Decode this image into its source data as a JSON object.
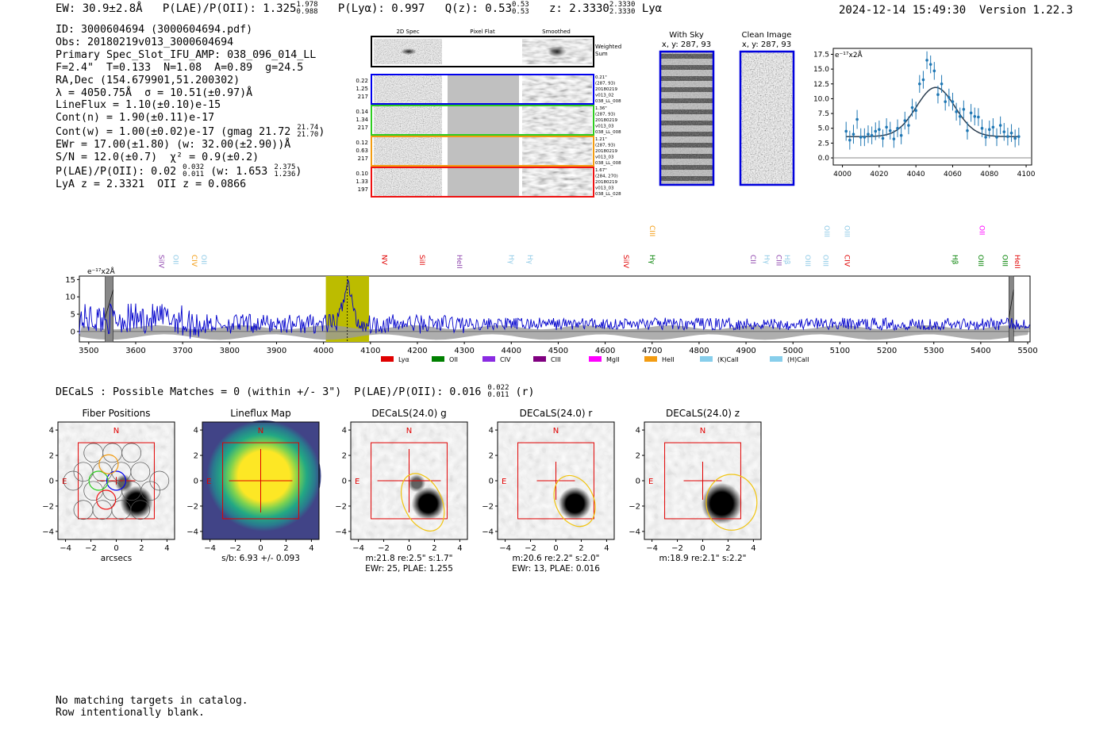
{
  "header": {
    "ew": "EW: 30.9±2.8Å",
    "plae_label": "P(LAE)/P(OII): 1.325",
    "plae_hi": "1.978",
    "plae_lo": "0.988",
    "plya": "P(Lyα): 0.997",
    "qz_label": "Q(z): 0.53",
    "qz_hi": "0.53",
    "qz_lo": "0.53",
    "z_label": "z: 2.3330",
    "z_hi": "2.3330",
    "z_lo": "2.3330",
    "line": "Lyα",
    "timestamp": "2024-12-14 15:49:30",
    "version": "Version 1.22.3"
  },
  "meta": {
    "id": "ID: 3000604694 (3000604694.pdf)",
    "obs": "Obs: 20180219v013_3000604694",
    "primary": "Primary Spec_Slot_IFU_AMP: 038_096_014_LL",
    "fit": "F=2.4\"  T=0.133  N=1.08  A=0.89  g=24.5",
    "radec": "RA,Dec (154.679901,51.200302)",
    "lam": "λ = 4050.75Å  σ = 10.51(±0.97)Å",
    "lineflux": "LineFlux = 1.10(±0.10)e-15",
    "contn": "Cont(n) = 1.90(±0.11)e-17",
    "contw": "Cont(w) = 1.00(±0.02)e-17 (gmag 21.72",
    "gmag_hi": "21.74",
    "gmag_lo": "21.70",
    "ewr": "EWr = 17.00(±1.80) (w: 32.00(±2.90))Å",
    "sn": "S/N = 12.0(±0.7)  χ² = 0.9(±0.2)",
    "plae2": "P(LAE)/P(OII): 0.02",
    "plae2_hi": "0.032",
    "plae2_lo": "0.011",
    "plae2_w": "(w: 1.653",
    "plae2_w_hi": "2.375",
    "plae2_w_lo": "1.236",
    "redshifts": "LyA z = 2.3321  OII z = 0.0866"
  },
  "cutouts": {
    "col_labels": [
      "2D Spec",
      "Pixel Flat",
      "Smoothed"
    ],
    "weighted_label": [
      "Weighted",
      "Sum"
    ],
    "rows": [
      {
        "left": [
          "0.22",
          "1.25",
          "217"
        ],
        "right": [
          "0.21\"",
          "(287, 93)",
          "20180219",
          "v013_02",
          "038_LL_008"
        ],
        "color": "#0000ee"
      },
      {
        "left": [
          "0.14",
          "1.34",
          "217"
        ],
        "right": [
          "1.36\"",
          "(287, 93)",
          "20180219",
          "v013_03",
          "038_LL_008"
        ],
        "color": "#2ecc20"
      },
      {
        "left": [
          "0.12",
          "0.63",
          "217"
        ],
        "right": [
          "1.21\"",
          "(287, 93)",
          "20180219",
          "v013_03",
          "038_LL_008"
        ],
        "color": "#f39c12"
      },
      {
        "left": [
          "0.10",
          "1.33",
          "197"
        ],
        "right": [
          "1.67\"",
          "(284, 270)",
          "20180219",
          "v013_03",
          "038_LL_028"
        ],
        "color": "#ee1111"
      }
    ]
  },
  "sky_panels": [
    {
      "title": "With Sky",
      "coords": "x, y: 287, 93"
    },
    {
      "title": "Clean Image",
      "coords": "x, y: 287, 93"
    }
  ],
  "colors": {
    "spectrum": "#0000cc",
    "fit": "#1f77b4",
    "highlight": "#bcbc00",
    "grid_gray": "#999999",
    "marker_red": "#e00000"
  },
  "zoom_chart": {
    "type": "scatter",
    "unit_label": "e⁻¹⁷x2Å",
    "xlim": [
      3995,
      4103
    ],
    "ylim": [
      -1.2,
      18.5
    ],
    "xticks": [
      "4000",
      "4020",
      "4040",
      "4060",
      "4080",
      "4100"
    ],
    "yticks": [
      "0.0",
      "2.5",
      "5.0",
      "7.5",
      "10.0",
      "12.5",
      "15.0",
      "17.5"
    ],
    "x": [
      4002,
      4004,
      4006,
      4008,
      4010,
      4012,
      4014,
      4016,
      4018,
      4020,
      4022,
      4024,
      4026,
      4028,
      4030,
      4032,
      4034,
      4036,
      4038,
      4040,
      4042,
      4044,
      4046,
      4048,
      4050,
      4052,
      4054,
      4056,
      4058,
      4060,
      4062,
      4064,
      4066,
      4068,
      4070,
      4072,
      4074,
      4076,
      4078,
      4080,
      4082,
      4084,
      4086,
      4088,
      4090,
      4092,
      4094,
      4096
    ],
    "y": [
      4.5,
      3.0,
      4.0,
      6.5,
      3.5,
      3.5,
      4.0,
      3.8,
      4.5,
      4.8,
      3.3,
      5.2,
      4.6,
      3.2,
      5.0,
      3.8,
      6.3,
      5.5,
      8.5,
      8.0,
      12.5,
      13.2,
      16.5,
      15.8,
      14.7,
      10.7,
      12.5,
      9.5,
      10.2,
      9.5,
      7.8,
      7.0,
      8.2,
      4.6,
      7.6,
      7.0,
      6.9,
      5.0,
      3.5,
      4.8,
      5.2,
      3.5,
      5.5,
      4.4,
      3.6,
      4.2,
      3.3,
      3.6
    ],
    "err": [
      1.6,
      1.6,
      1.6,
      1.6,
      1.5,
      1.5,
      1.5,
      1.5,
      1.5,
      1.5,
      1.5,
      1.5,
      1.5,
      1.5,
      1.5,
      1.5,
      1.5,
      1.5,
      1.5,
      1.5,
      1.5,
      1.5,
      1.5,
      1.5,
      1.5,
      1.5,
      1.5,
      1.5,
      1.5,
      1.5,
      1.5,
      1.5,
      1.5,
      1.5,
      1.5,
      1.5,
      1.5,
      1.5,
      1.5,
      1.5,
      1.5,
      1.5,
      1.5,
      1.5,
      1.5,
      1.5,
      1.5,
      1.5
    ],
    "fit": {
      "center": 4050.75,
      "sigma": 10.51,
      "amplitude": 8.3,
      "continuum": 3.6
    }
  },
  "spectrum_chart": {
    "type": "line",
    "unit_label": "e⁻¹⁷x2Å",
    "xlim": [
      3480,
      5505
    ],
    "ylim": [
      -3,
      16
    ],
    "xticks": [
      "3500",
      "3600",
      "3700",
      "3800",
      "3900",
      "4000",
      "4100",
      "4200",
      "4300",
      "4400",
      "4500",
      "4600",
      "4700",
      "4800",
      "4900",
      "5000",
      "5100",
      "5200",
      "5300",
      "5400",
      "5500"
    ],
    "yticks": [
      "0",
      "5",
      "10",
      "15"
    ],
    "highlight_range": [
      4005,
      4097
    ],
    "detection_line": 4050.75,
    "lines": [
      {
        "name": "SiIV",
        "x": 3655,
        "color": "#8e44ad",
        "tier": 0
      },
      {
        "name": "OII",
        "x": 3685,
        "color": "#8ecae6",
        "tier": 0
      },
      {
        "name": "CIV",
        "x": 3725,
        "color": "#f39c12",
        "tier": 0
      },
      {
        "name": "OII",
        "x": 3745,
        "color": "#8ecae6",
        "tier": 0
      },
      {
        "name": "NV",
        "x": 4130,
        "color": "#e00000",
        "tier": 0
      },
      {
        "name": "SiII",
        "x": 4210,
        "color": "#e00000",
        "tier": 0
      },
      {
        "name": "HeII",
        "x": 4290,
        "color": "#8e44ad",
        "tier": 0
      },
      {
        "name": "Hγ",
        "x": 4400,
        "color": "#8ecae6",
        "tier": 0
      },
      {
        "name": "Hγ",
        "x": 4440,
        "color": "#8ecae6",
        "tier": 0
      },
      {
        "name": "SiIV",
        "x": 4645,
        "color": "#e00000",
        "tier": 0
      },
      {
        "name": "CIII",
        "x": 4700,
        "color": "#f39c12",
        "tier": 1
      },
      {
        "name": "Hγ",
        "x": 4700,
        "color": "#008000",
        "tier": 0
      },
      {
        "name": "CII",
        "x": 4915,
        "color": "#8e44ad",
        "tier": 0
      },
      {
        "name": "Hγ",
        "x": 4945,
        "color": "#8ecae6",
        "tier": 0
      },
      {
        "name": "CIII",
        "x": 4970,
        "color": "#8e44ad",
        "tier": 0
      },
      {
        "name": "Hβ",
        "x": 4988,
        "color": "#8ecae6",
        "tier": 0
      },
      {
        "name": "OIII",
        "x": 5032,
        "color": "#8ecae6",
        "tier": 0
      },
      {
        "name": "OIII",
        "x": 5070,
        "color": "#8ecae6",
        "tier": 0
      },
      {
        "name": "OIII",
        "x": 5072,
        "color": "#8ecae6",
        "tier": 1
      },
      {
        "name": "OIII",
        "x": 5115,
        "color": "#8ecae6",
        "tier": 1
      },
      {
        "name": "CIV",
        "x": 5115,
        "color": "#e00000",
        "tier": 0
      },
      {
        "name": "Hβ",
        "x": 5345,
        "color": "#008000",
        "tier": 0
      },
      {
        "name": "OIII",
        "x": 5400,
        "color": "#008000",
        "tier": 0
      },
      {
        "name": "OII",
        "x": 5403,
        "color": "#ff00ff",
        "tier": 1
      },
      {
        "name": "OIII",
        "x": 5452,
        "color": "#008000",
        "tier": 0
      },
      {
        "name": "HeII",
        "x": 5478,
        "color": "#e00000",
        "tier": 0
      }
    ],
    "legend": [
      {
        "name": "Lyα",
        "color": "#e00000"
      },
      {
        "name": "OII",
        "color": "#008000"
      },
      {
        "name": "CIV",
        "color": "#8a2be2"
      },
      {
        "name": "CIII",
        "color": "#800080"
      },
      {
        "name": "MgII",
        "color": "#ff00ff"
      },
      {
        "name": "HeII",
        "color": "#f39c12"
      },
      {
        "name": "(K)CaII",
        "color": "#87ceeb"
      },
      {
        "name": "(H)CaII",
        "color": "#87ceeb"
      }
    ]
  },
  "decals": {
    "header": "DECaLS : Possible Matches = 0 (within +/- 3\")  P(LAE)/P(OII): 0.016",
    "header_hi": "0.022",
    "header_lo": "0.011",
    "header_band": "(r)",
    "axis_ticks": [
      "−4",
      "−2",
      "0",
      "2",
      "4"
    ],
    "compass_n": "N",
    "compass_e": "E",
    "panels": [
      {
        "title": "Fiber Positions",
        "caption1": "arcsecs",
        "caption2": ""
      },
      {
        "title": "Lineflux Map",
        "caption1": "s/b: 6.93 +/- 0.093",
        "caption2": ""
      },
      {
        "title": "DECaLS(24.0) g",
        "caption1": "m:21.8  re:2.5\"  s:1.7\"",
        "caption2": "EWr: 25, PLAE: 1.255"
      },
      {
        "title": "DECaLS(24.0) r",
        "caption1": "m:20.6  re:2.2\"  s:2.0\"",
        "caption2": "EWr: 13, PLAE: 0.016"
      },
      {
        "title": "DECaLS(24.0) z",
        "caption1": "m:18.9  re:2.1\"  s:2.2\"",
        "caption2": ""
      }
    ]
  },
  "footer": {
    "line1": "No matching targets in catalog.",
    "line2": "Row intentionally blank."
  }
}
